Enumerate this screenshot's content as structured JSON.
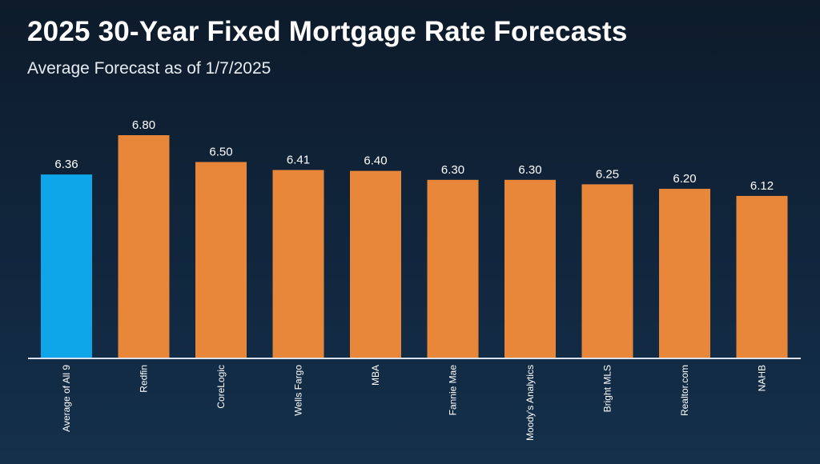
{
  "header": {
    "title": "2025 30-Year Fixed Mortgage Rate Forecasts",
    "subtitle": "Average Forecast as of 1/7/2025"
  },
  "colors": {
    "highlight": "#0ea5e9",
    "bar": "#e8873a",
    "axis": "#d9e2ec",
    "text": "#ffffff"
  },
  "chart_data": {
    "type": "bar",
    "title": "2025 30-Year Fixed Mortgage Rate Forecasts",
    "subtitle": "Average Forecast as of 1/7/2025",
    "xlabel": "",
    "ylabel": "",
    "categories": [
      "Average of All 9",
      "Redfin",
      "CoreLogic",
      "Wells Fargo",
      "MBA",
      "Fannie Mae",
      "Moody's Analytics",
      "Bright MLS",
      "Realtor.com",
      "NAHB"
    ],
    "values": [
      6.36,
      6.8,
      6.5,
      6.41,
      6.4,
      6.3,
      6.3,
      6.25,
      6.2,
      6.12
    ],
    "value_labels": [
      "6.36",
      "6.80",
      "6.50",
      "6.41",
      "6.40",
      "6.30",
      "6.30",
      "6.25",
      "6.20",
      "6.12"
    ],
    "highlight_index": 0,
    "ylim": [
      4.3,
      6.8
    ],
    "grid": false,
    "legend": "none"
  }
}
